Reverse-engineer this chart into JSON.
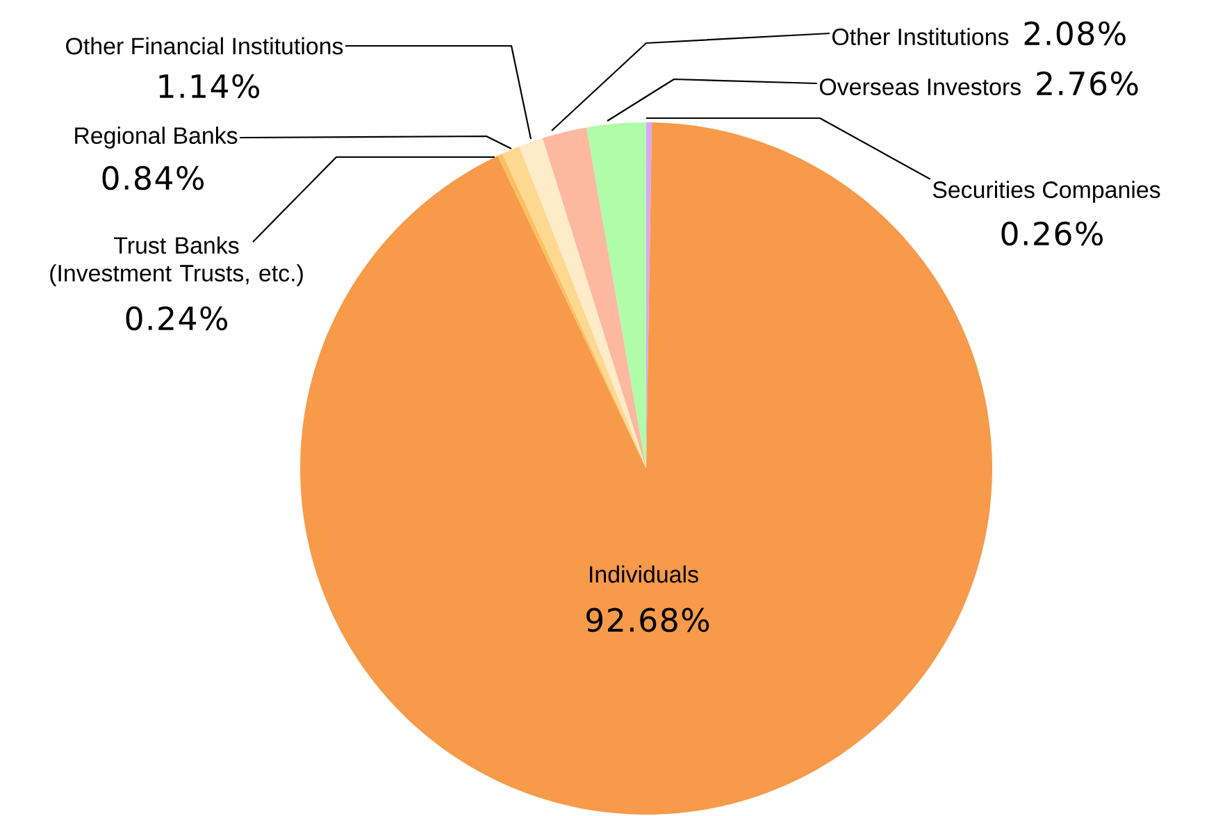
{
  "chart_data": {
    "type": "pie",
    "categories": [
      "Securities Companies",
      "Individuals",
      "Trust Banks (Investment Trusts, etc.)",
      "Regional Banks",
      "Other Financial Institutions",
      "Other Institutions",
      "Overseas Investors"
    ],
    "values": [
      0.26,
      92.68,
      0.24,
      0.84,
      1.14,
      2.08,
      2.76
    ],
    "value_labels": [
      "0.26%",
      "92.68%",
      "0.24%",
      "0.84%",
      "1.14%",
      "2.08%",
      "2.76%"
    ],
    "colors": [
      "#d8a8f8",
      "#f79a4a",
      "#fbc060",
      "#fdd890",
      "#feebc8",
      "#fdb8a0",
      "#b0fca8"
    ]
  }
}
